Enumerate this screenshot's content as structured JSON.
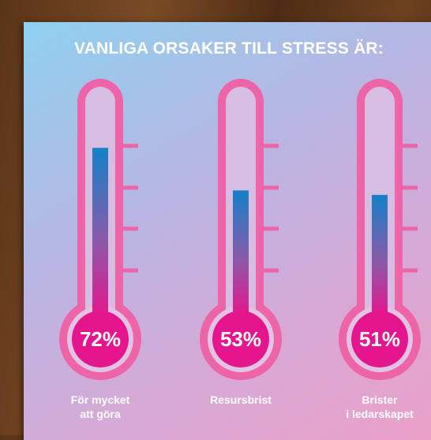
{
  "chart_data": {
    "type": "thermometer",
    "title": "VANLIGA ORSAKER TILL STRESS ÄR:",
    "categories": [
      "För mycket\natt göra",
      "Resursbrist",
      "Brister\ni ledarskapet"
    ],
    "values": [
      72,
      53,
      51
    ],
    "value_labels": [
      "72%",
      "53%",
      "51%"
    ],
    "ylim": [
      0,
      100
    ]
  }
}
